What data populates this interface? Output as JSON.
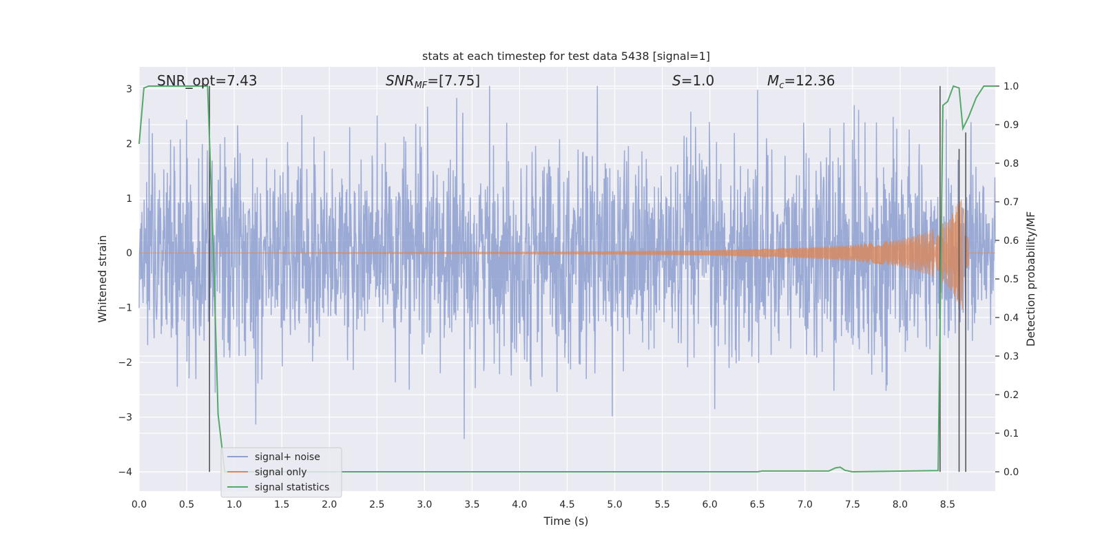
{
  "chart_data": {
    "type": "line",
    "title": "stats at each timestep for test data 5438 [signal=1]",
    "xlabel": "Time (s)",
    "ylabel": "Whitened strain",
    "y2label": "Detection probability/MF",
    "xlim": [
      0.0,
      9.0
    ],
    "ylim": [
      -4.35,
      3.4
    ],
    "y2lim": [
      -0.05,
      1.05
    ],
    "x_ticks": [
      0.0,
      0.5,
      1.0,
      1.5,
      2.0,
      2.5,
      3.0,
      3.5,
      4.0,
      4.5,
      5.0,
      5.5,
      6.0,
      6.5,
      7.0,
      7.5,
      8.0,
      8.5
    ],
    "x_tick_labels": [
      "0.0",
      "0.5",
      "1.0",
      "1.5",
      "2.0",
      "2.5",
      "3.0",
      "3.5",
      "4.0",
      "4.5",
      "5.0",
      "5.5",
      "6.0",
      "6.5",
      "7.0",
      "7.5",
      "8.0",
      "8.5"
    ],
    "y_ticks": [
      -4,
      -3,
      -2,
      -1,
      0,
      1,
      2,
      3
    ],
    "y_tick_labels": [
      "−4",
      "−3",
      "−2",
      "−1",
      "0",
      "1",
      "2",
      "3"
    ],
    "y2_ticks": [
      0.0,
      0.1,
      0.2,
      0.3,
      0.4,
      0.5,
      0.6,
      0.7,
      0.8,
      0.9,
      1.0
    ],
    "y2_tick_labels": [
      "0.0",
      "0.1",
      "0.2",
      "0.3",
      "0.4",
      "0.5",
      "0.6",
      "0.7",
      "0.8",
      "0.9",
      "1.0"
    ],
    "grid": true,
    "legend_position": "lower-left",
    "annotations": {
      "snr_opt": "SNR_opt=7.43",
      "snr_mf_main": "SNR",
      "snr_mf_sub": "MF",
      "snr_mf_rest": "=[7.75]",
      "s_var": "S",
      "s_rest": "=1.0",
      "mc_var": "M",
      "mc_sub": "c",
      "mc_rest": "=12.36"
    },
    "series": [
      {
        "name": "signal+ noise",
        "color": "#8c9fcf",
        "description_values": "whitened noisy strain, roughly gaussian with amplitude ~1, spikes up to ~±3",
        "x_range": [
          0.0,
          9.0
        ],
        "amplitude_envelope": [
          [
            0.0,
            1.0
          ],
          [
            9.0,
            1.0
          ]
        ]
      },
      {
        "name": "signal only",
        "color": "#dd8452",
        "x_range": [
          0.0,
          8.72
        ],
        "amplitude_envelope": [
          [
            0.0,
            0.0
          ],
          [
            4.5,
            0.02
          ],
          [
            6.0,
            0.05
          ],
          [
            7.0,
            0.1
          ],
          [
            7.5,
            0.15
          ],
          [
            8.0,
            0.25
          ],
          [
            8.3,
            0.4
          ],
          [
            8.5,
            0.6
          ],
          [
            8.6,
            0.9
          ],
          [
            8.65,
            1.1
          ],
          [
            8.7,
            0.3
          ]
        ]
      },
      {
        "name": "signal statistics",
        "color": "#55a868",
        "axis": "right",
        "x": [
          0.0,
          0.05,
          0.1,
          0.7,
          0.72,
          0.78,
          0.83,
          0.9,
          6.5,
          6.55,
          7.25,
          7.32,
          7.37,
          7.42,
          7.5,
          8.4,
          8.45,
          8.5,
          8.56,
          8.62,
          8.66,
          8.72,
          8.8,
          8.88,
          9.0
        ],
        "y": [
          0.85,
          0.995,
          1.0,
          1.0,
          1.0,
          0.58,
          0.15,
          0.0,
          0.0,
          0.002,
          0.002,
          0.01,
          0.012,
          0.004,
          0.0,
          0.003,
          0.95,
          0.96,
          1.0,
          0.995,
          0.89,
          0.92,
          0.97,
          1.0,
          1.0
        ]
      }
    ],
    "vertical_lines": {
      "color": "#555555",
      "lines": [
        {
          "x": 0.74,
          "y_top": 3.05,
          "y_bottom": -4.0
        },
        {
          "x": 8.42,
          "y_top": 3.05,
          "y_bottom": -4.0
        },
        {
          "x": 8.62,
          "y_top": 1.9,
          "y_bottom": -4.0
        },
        {
          "x": 8.69,
          "y_top": 2.2,
          "y_bottom": -4.0
        }
      ]
    }
  }
}
